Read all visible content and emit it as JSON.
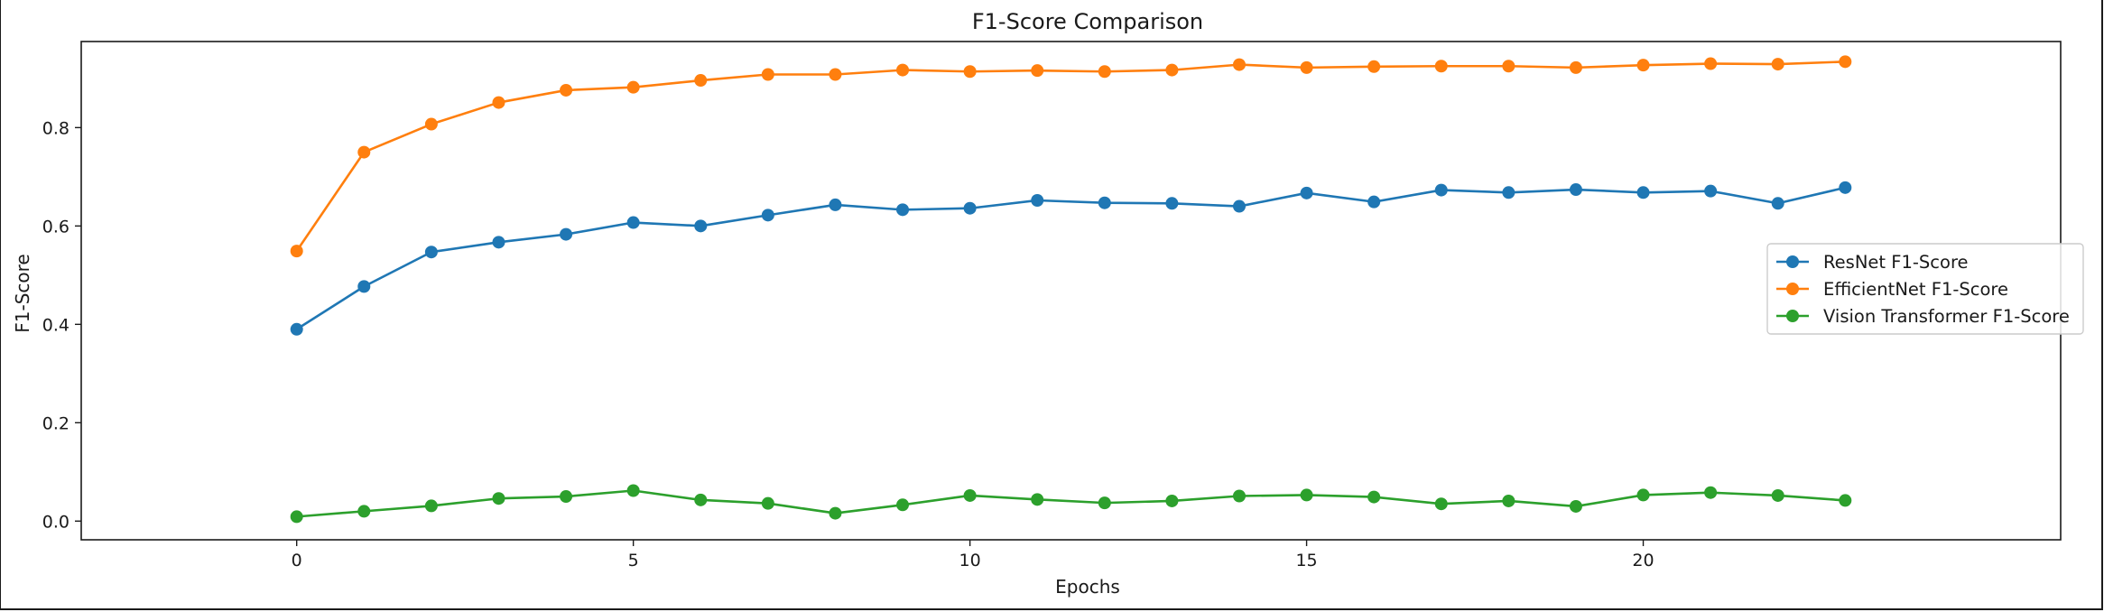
{
  "chart_data": {
    "type": "line",
    "title": "F1-Score Comparison",
    "xlabel": "Epochs",
    "ylabel": "F1-Score",
    "xlim": [
      -3.2,
      26.2
    ],
    "ylim": [
      -0.038,
      0.975
    ],
    "xticks": [
      0,
      5,
      10,
      15,
      20
    ],
    "yticks": [
      0.0,
      0.2,
      0.4,
      0.6,
      0.8
    ],
    "ytick_labels": [
      "0.0",
      "0.2",
      "0.4",
      "0.6",
      "0.8"
    ],
    "grid": false,
    "legend_position": "center-right",
    "x": [
      0,
      1,
      2,
      3,
      4,
      5,
      6,
      7,
      8,
      9,
      10,
      11,
      12,
      13,
      14,
      15,
      16,
      17,
      18,
      19,
      20,
      21,
      22,
      23
    ],
    "series": [
      {
        "name": "ResNet F1-Score",
        "color": "#1f77b4",
        "values": [
          0.39,
          0.477,
          0.547,
          0.567,
          0.583,
          0.607,
          0.6,
          0.622,
          0.643,
          0.633,
          0.636,
          0.652,
          0.647,
          0.646,
          0.64,
          0.667,
          0.649,
          0.673,
          0.668,
          0.674,
          0.668,
          0.671,
          0.646,
          0.678
        ]
      },
      {
        "name": "EfficientNet F1-Score",
        "color": "#ff7f0e",
        "values": [
          0.549,
          0.75,
          0.807,
          0.851,
          0.876,
          0.882,
          0.896,
          0.908,
          0.908,
          0.917,
          0.914,
          0.916,
          0.914,
          0.917,
          0.928,
          0.922,
          0.924,
          0.925,
          0.925,
          0.922,
          0.927,
          0.93,
          0.929,
          0.934
        ]
      },
      {
        "name": "Vision Transformer F1-Score",
        "color": "#2ca02c",
        "values": [
          0.009,
          0.02,
          0.031,
          0.046,
          0.05,
          0.062,
          0.043,
          0.036,
          0.016,
          0.033,
          0.052,
          0.044,
          0.037,
          0.041,
          0.051,
          0.053,
          0.049,
          0.035,
          0.041,
          0.03,
          0.053,
          0.058,
          0.052,
          0.042
        ]
      }
    ]
  }
}
